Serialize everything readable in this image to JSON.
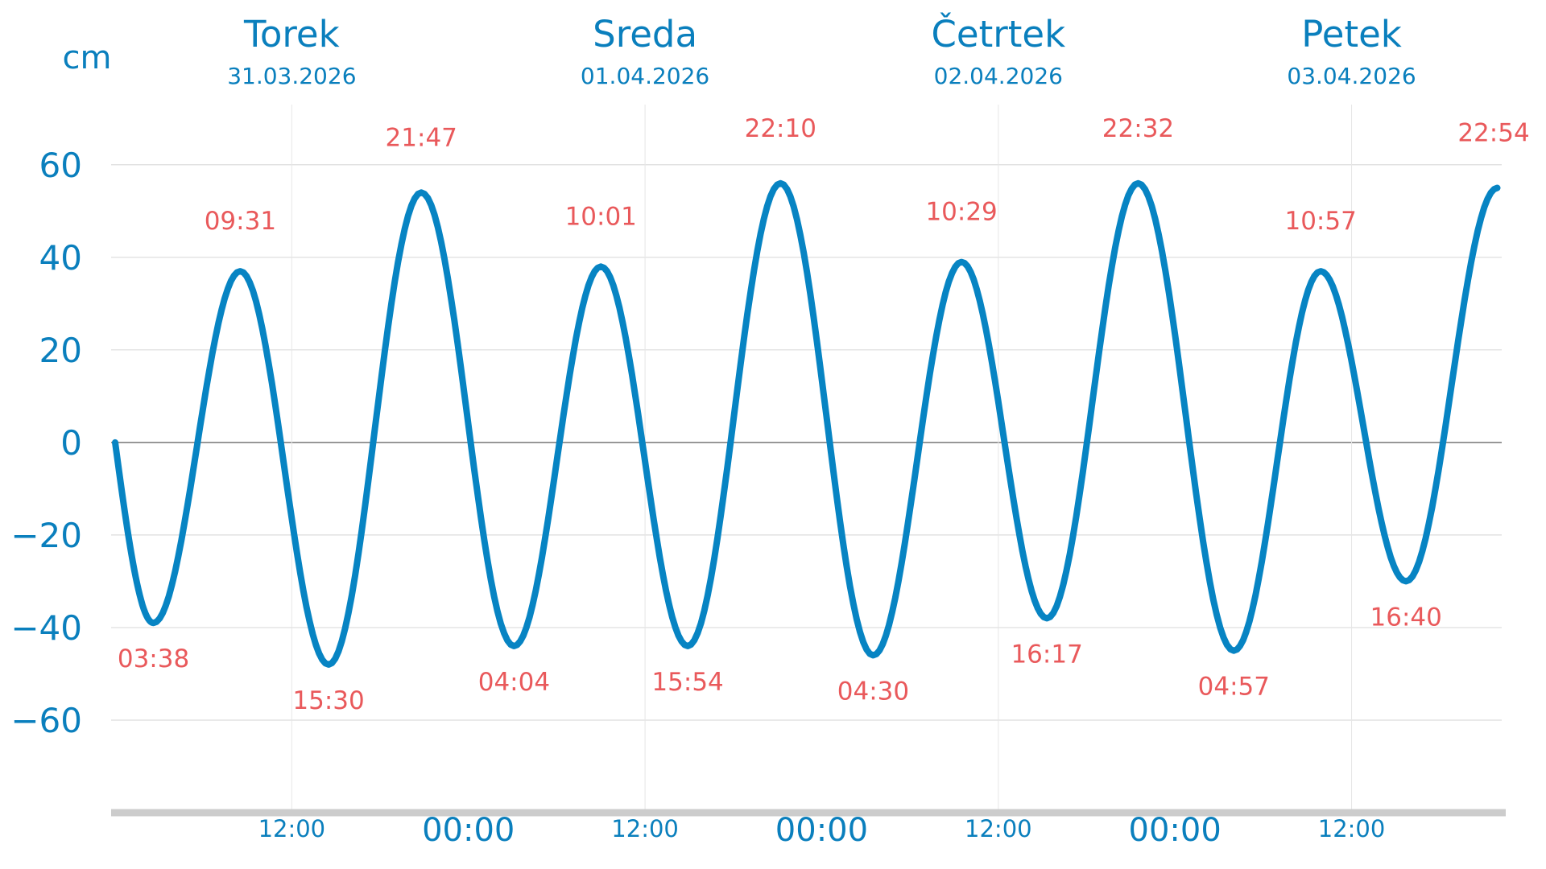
{
  "chart_data": {
    "type": "line",
    "unit_label": "cm",
    "days": [
      {
        "name": "Torek",
        "date": "31.03.2026"
      },
      {
        "name": "Sreda",
        "date": "01.04.2026"
      },
      {
        "name": "Četrtek",
        "date": "02.04.2026"
      },
      {
        "name": "Petek",
        "date": "03.04.2026"
      }
    ],
    "x_range_hours": [
      0,
      94.2
    ],
    "ylim": [
      -80,
      73
    ],
    "y_ticks": [
      {
        "value": 60,
        "label": "60"
      },
      {
        "value": 40,
        "label": "40"
      },
      {
        "value": 20,
        "label": "20"
      },
      {
        "value": 0,
        "label": "0"
      },
      {
        "value": -20,
        "label": "−20"
      },
      {
        "value": -40,
        "label": "−40"
      },
      {
        "value": -60,
        "label": "−60"
      }
    ],
    "x_ticks": [
      {
        "hour": 12,
        "label": "12:00",
        "major": false
      },
      {
        "hour": 24,
        "label": "00:00",
        "major": true
      },
      {
        "hour": 36,
        "label": "12:00",
        "major": false
      },
      {
        "hour": 48,
        "label": "00:00",
        "major": true
      },
      {
        "hour": 60,
        "label": "12:00",
        "major": false
      },
      {
        "hour": 72,
        "label": "00:00",
        "major": true
      },
      {
        "hour": 84,
        "label": "12:00",
        "major": false
      }
    ],
    "series": [
      {
        "color": "#0784c3",
        "points": [
          {
            "hour": 0.0,
            "value": 0
          },
          {
            "hour": 2.6,
            "value": -39,
            "label": "03:38"
          },
          {
            "hour": 8.5,
            "value": 37,
            "label": "09:31"
          },
          {
            "hour": 14.5,
            "value": -48,
            "label": "15:30"
          },
          {
            "hour": 20.8,
            "value": 54,
            "label": "21:47"
          },
          {
            "hour": 27.1,
            "value": -44,
            "label": "04:04"
          },
          {
            "hour": 33.0,
            "value": 38,
            "label": "10:01"
          },
          {
            "hour": 38.9,
            "value": -44,
            "label": "15:54"
          },
          {
            "hour": 45.2,
            "value": 56,
            "label": "22:10"
          },
          {
            "hour": 51.5,
            "value": -46,
            "label": "04:30"
          },
          {
            "hour": 57.5,
            "value": 39,
            "label": "10:29"
          },
          {
            "hour": 63.3,
            "value": -38,
            "label": "16:17"
          },
          {
            "hour": 69.5,
            "value": 56,
            "label": "22:32"
          },
          {
            "hour": 76.0,
            "value": -45,
            "label": "04:57"
          },
          {
            "hour": 81.9,
            "value": 37,
            "label": "10:57"
          },
          {
            "hour": 87.7,
            "value": -30,
            "label": "16:40"
          },
          {
            "hour": 93.9,
            "value": 55,
            "label": "22:54"
          }
        ]
      }
    ],
    "grid": true
  }
}
